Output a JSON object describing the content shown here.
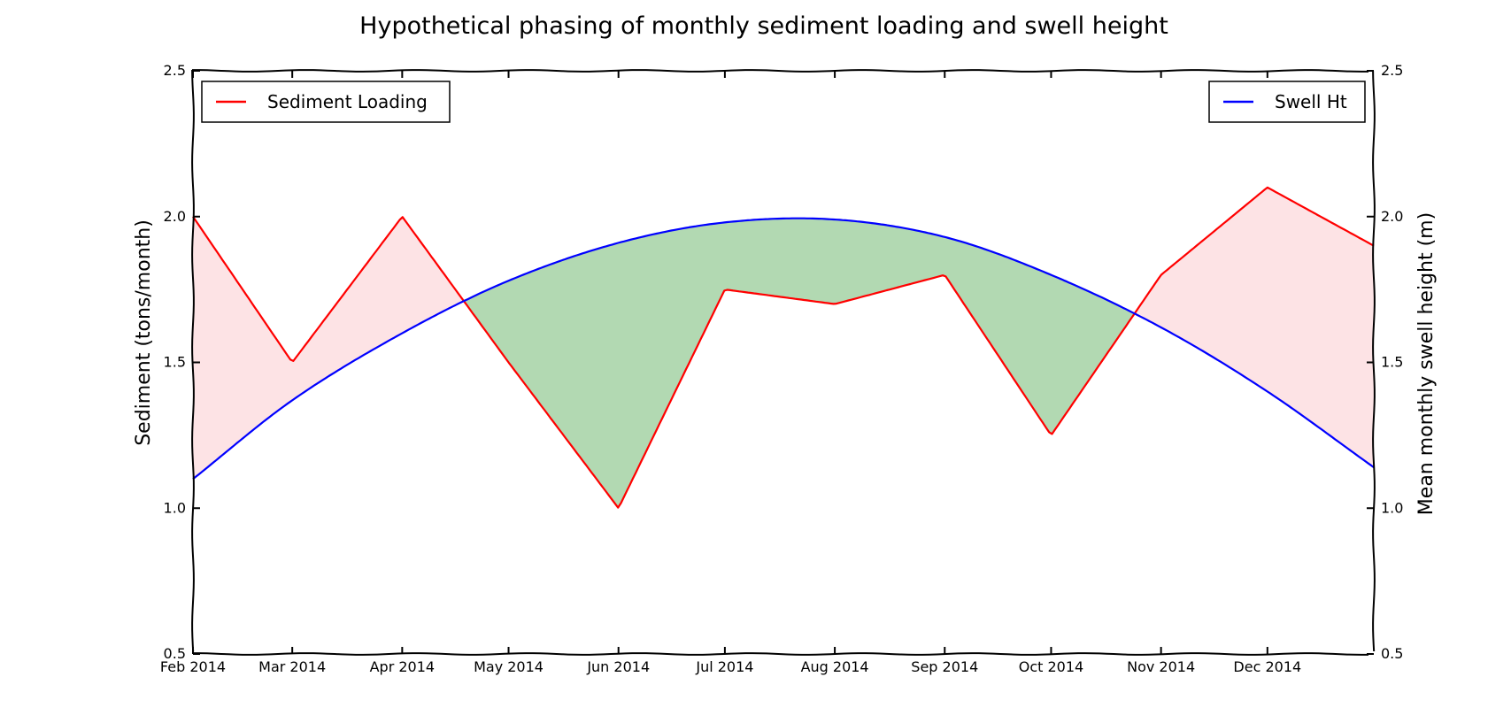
{
  "chart_data": {
    "type": "line",
    "title": "Hypothetical phasing of monthly sediment loading and swell height",
    "ylabel_left": "Sediment (tons/month)",
    "ylabel_right": "Mean monthly swell height (m)",
    "ylim": [
      0.5,
      2.5
    ],
    "yticks": [
      "0.5",
      "1.0",
      "1.5",
      "2.0",
      "2.5"
    ],
    "x_tick_labels": [
      "Feb 2014",
      "Mar 2014",
      "Apr 2014",
      "May 2014",
      "Jun 2014",
      "Jul 2014",
      "Aug 2014",
      "Sep 2014",
      "Oct 2014",
      "Nov 2014",
      "Dec 2014"
    ],
    "x_tick_dates": [
      "2014-02-01",
      "2014-03-01",
      "2014-04-01",
      "2014-05-01",
      "2014-06-01",
      "2014-07-01",
      "2014-08-01",
      "2014-09-01",
      "2014-10-01",
      "2014-11-01",
      "2014-12-01"
    ],
    "x_range": [
      "2014-02-01",
      "2014-12-31"
    ],
    "grid": false,
    "legend_placement": [
      "top-left",
      "top-right"
    ],
    "fill_colors": {
      "sediment_above": "#fde3e5",
      "swell_above": "#b2d9b2"
    },
    "series": [
      {
        "name": "Sediment Loading",
        "color": "#ff0000",
        "axis": "left",
        "x": [
          "2014-02-01",
          "2014-03-01",
          "2014-04-01",
          "2014-05-01",
          "2014-06-01",
          "2014-07-01",
          "2014-08-01",
          "2014-09-01",
          "2014-10-01",
          "2014-11-01",
          "2014-12-01",
          "2014-12-31"
        ],
        "values": [
          2.0,
          1.5,
          2.0,
          1.5,
          1.0,
          1.75,
          1.7,
          1.8,
          1.25,
          1.8,
          2.1,
          1.9
        ]
      },
      {
        "name": "Swell Ht",
        "color": "#0000ff",
        "axis": "right",
        "x": [
          "2014-02-01",
          "2014-03-01",
          "2014-04-01",
          "2014-05-01",
          "2014-06-01",
          "2014-07-01",
          "2014-08-01",
          "2014-09-01",
          "2014-10-01",
          "2014-11-01",
          "2014-12-01",
          "2014-12-31"
        ],
        "values": [
          1.1,
          1.37,
          1.6,
          1.78,
          1.91,
          1.98,
          1.99,
          1.93,
          1.8,
          1.62,
          1.4,
          1.14
        ]
      }
    ]
  }
}
